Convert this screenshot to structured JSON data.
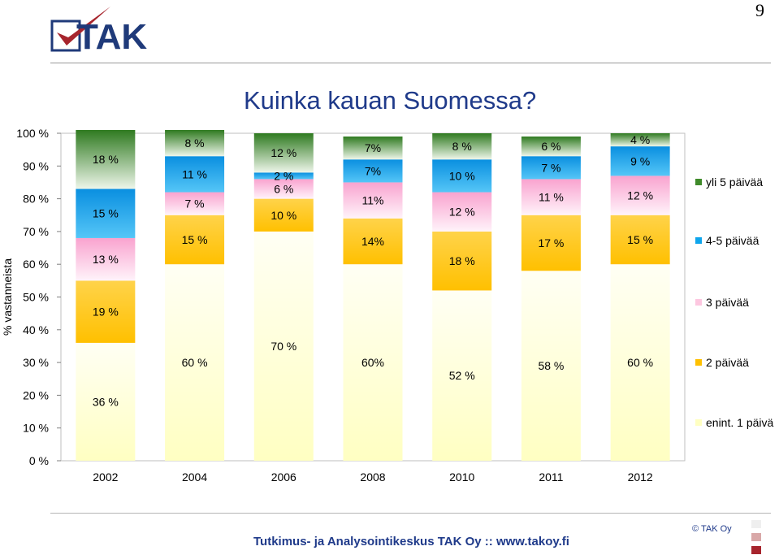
{
  "page": {
    "number": "9"
  },
  "logo": {
    "text": "TAK"
  },
  "title": "Kuinka kauan Suomessa?",
  "footer": {
    "text": "Tutkimus- ja Analysointikeskus TAK Oy  ::  www.takoy.fi",
    "copyright": "© TAK Oy"
  },
  "colors": {
    "enint_1": "#ffffc2",
    "paivaa_2": "#ffc000",
    "paivaa_3": "#fdc7e0",
    "paivaa_4_5": "#0ea5ec",
    "yli_5": "#3f8a2a",
    "square_1": "#efefef",
    "square_2": "#d9a8a8",
    "square_3": "#a7252d"
  },
  "chart_data": {
    "type": "bar",
    "stacked": true,
    "title": "Kuinka kauan Suomessa?",
    "xlabel": "",
    "ylabel": "% vastanneista",
    "ylim": [
      0,
      100
    ],
    "y_ticks": [
      "0 %",
      "10 %",
      "20 %",
      "30 %",
      "40 %",
      "50 %",
      "60 %",
      "70 %",
      "80 %",
      "90 %",
      "100 %"
    ],
    "categories": [
      "2002",
      "2004",
      "2006",
      "2008",
      "2010",
      "2011",
      "2012"
    ],
    "legend_position": "right",
    "grid": false,
    "series": [
      {
        "name": "enint. 1 päivä",
        "values": [
          36,
          60,
          70,
          60,
          52,
          58,
          60
        ],
        "labels": [
          "36 %",
          "60 %",
          "70 %",
          "60%",
          "52 %",
          "58 %",
          "60 %"
        ]
      },
      {
        "name": "2 päivää",
        "values": [
          19,
          15,
          10,
          14,
          18,
          17,
          15
        ],
        "labels": [
          "19 %",
          "15 %",
          "10 %",
          "14%",
          "18 %",
          "17 %",
          "15 %"
        ]
      },
      {
        "name": "3 päivää",
        "values": [
          13,
          7,
          6,
          11,
          12,
          11,
          12
        ],
        "labels": [
          "13 %",
          "7 %",
          "6 %",
          "11%",
          "12 %",
          "11 %",
          "12 %"
        ]
      },
      {
        "name": "4-5 päivää",
        "values": [
          15,
          11,
          2,
          7,
          10,
          7,
          9
        ],
        "labels": [
          "15 %",
          "11 %",
          "2 %",
          "7%",
          "10 %",
          "7 %",
          "9 %"
        ]
      },
      {
        "name": "yli 5 päivää",
        "values": [
          18,
          8,
          12,
          7,
          8,
          6,
          4
        ],
        "labels": [
          "18 %",
          "8 %",
          "12 %",
          "7%",
          "8 %",
          "6 %",
          "4 %"
        ]
      }
    ]
  }
}
